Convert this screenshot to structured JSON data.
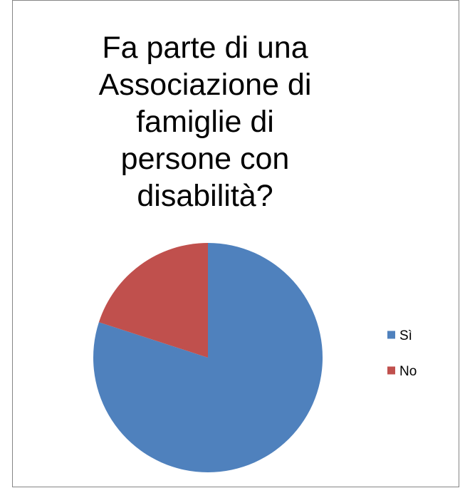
{
  "chart_data": {
    "type": "pie",
    "title": "Fa parte di una\nAssociazione di\nfamiglie di\npersone  con\ndisabilità?",
    "categories": [
      "Sì",
      "No"
    ],
    "values": [
      80,
      20
    ],
    "colors": [
      "#4F81BD",
      "#C0504D"
    ],
    "legend_position": "right",
    "start_angle": "12 o'clock",
    "direction": "clockwise"
  }
}
